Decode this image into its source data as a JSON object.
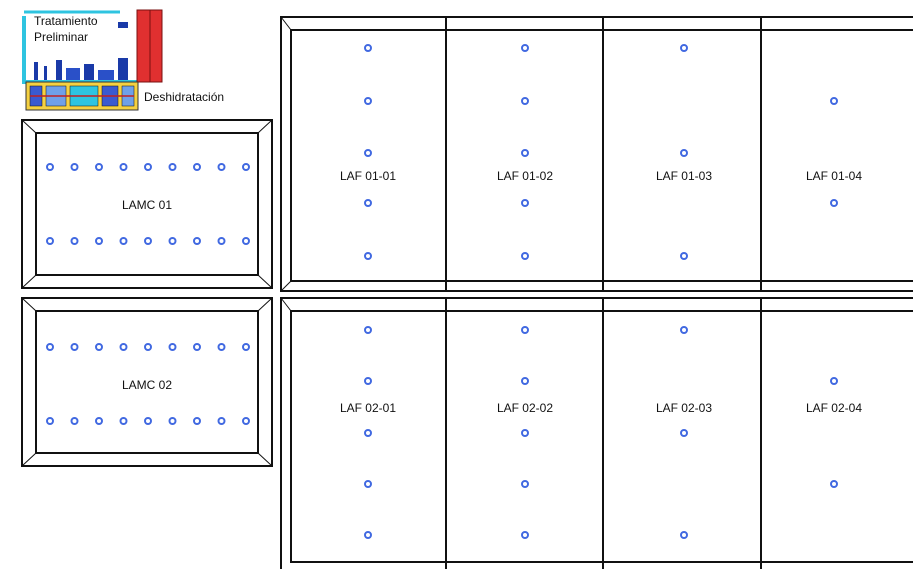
{
  "treatment_area": {
    "label_line1": "Tratamiento",
    "label_line2": "Preliminar",
    "dehydration_label": "Deshidratación"
  },
  "lamc_ponds": [
    {
      "label": "LAMC 01",
      "rows": 2,
      "points_per_row": 9
    },
    {
      "label": "LAMC 02",
      "rows": 2,
      "points_per_row": 9
    }
  ],
  "laf_ponds": [
    {
      "label": "LAF 01-01",
      "points": 5
    },
    {
      "label": "LAF 01-02",
      "points": 5
    },
    {
      "label": "LAF 01-03",
      "points": 3
    },
    {
      "label": "LAF 01-04",
      "points": 2
    },
    {
      "label": "LAF 02-01",
      "points": 5
    },
    {
      "label": "LAF 02-02",
      "points": 5
    },
    {
      "label": "LAF 02-03",
      "points": 3
    },
    {
      "label": "LAF 02-04",
      "points": 2
    }
  ],
  "colors": {
    "sampling_point": "#4169e1",
    "outline": "#111111",
    "treatment_frame": "#2ec4e0",
    "dehydration_block": "#e03030",
    "equipment_yellow": "#f5d142"
  },
  "icons": [
    "sampling-point-icon",
    "treatment-equipment-icon"
  ]
}
